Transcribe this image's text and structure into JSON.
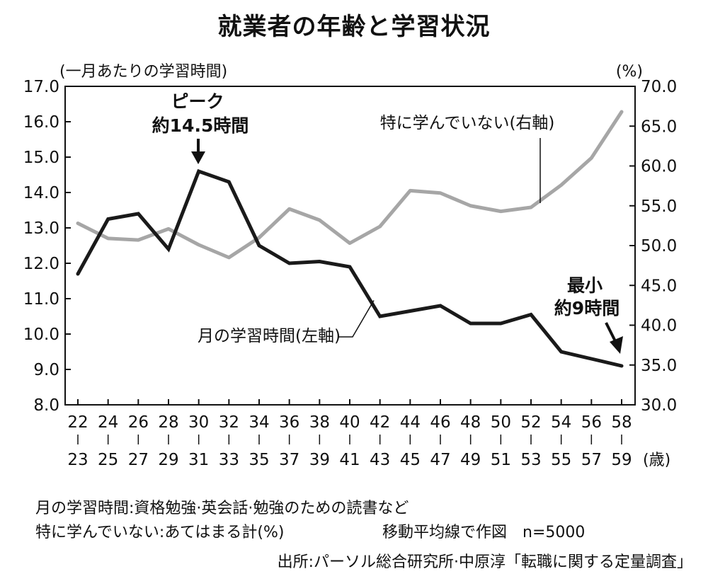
{
  "title": "就業者の年齢と学習状況",
  "chart_data": {
    "type": "line",
    "categories": [
      [
        "22",
        "23"
      ],
      [
        "24",
        "25"
      ],
      [
        "26",
        "27"
      ],
      [
        "28",
        "29"
      ],
      [
        "30",
        "31"
      ],
      [
        "32",
        "33"
      ],
      [
        "34",
        "35"
      ],
      [
        "36",
        "37"
      ],
      [
        "38",
        "39"
      ],
      [
        "40",
        "41"
      ],
      [
        "42",
        "43"
      ],
      [
        "44",
        "45"
      ],
      [
        "46",
        "47"
      ],
      [
        "48",
        "49"
      ],
      [
        "50",
        "51"
      ],
      [
        "52",
        "53"
      ],
      [
        "54",
        "55"
      ],
      [
        "56",
        "57"
      ],
      [
        "58",
        "59"
      ]
    ],
    "x_unit": "(歳)",
    "left_axis": {
      "label": "(一月あたりの学習時間)",
      "ylim": [
        8.0,
        17.0
      ],
      "ticks": [
        "8.0",
        "9.0",
        "10.0",
        "11.0",
        "12.0",
        "13.0",
        "14.0",
        "15.0",
        "16.0",
        "17.0"
      ]
    },
    "right_axis": {
      "label": "(%)",
      "ylim": [
        30.0,
        70.0
      ],
      "ticks": [
        "30.0",
        "35.0",
        "40.0",
        "45.0",
        "50.0",
        "55.0",
        "60.0",
        "65.0",
        "70.0"
      ]
    },
    "series": [
      {
        "name": "月の学習時間(左軸)",
        "axis": "left",
        "color": "#1a1a1a",
        "values": [
          11.7,
          13.25,
          13.4,
          12.4,
          14.6,
          14.3,
          12.5,
          12.0,
          12.05,
          11.9,
          10.5,
          10.65,
          10.8,
          10.3,
          10.3,
          10.55,
          9.5,
          9.3,
          9.1
        ]
      },
      {
        "name": "特に学んでいない(右軸)",
        "axis": "right",
        "color": "#a6a6a6",
        "values": [
          52.8,
          50.9,
          50.7,
          52.1,
          50.1,
          48.5,
          51.0,
          54.6,
          53.2,
          50.3,
          52.4,
          56.9,
          56.6,
          55.0,
          54.3,
          54.8,
          57.6,
          61.0,
          66.8
        ]
      }
    ],
    "annotations": {
      "peak": [
        "ピーク",
        "約14.5時間"
      ],
      "min": [
        "最小",
        "約9時間"
      ]
    }
  },
  "notes": {
    "line1": "月の学習時間:資格勉強·英会話·勉強のための読書など",
    "line2": "特に学んでいない:あてはまる計(%)",
    "line3": "移動平均線で作図　n=5000",
    "source": "出所:パーソル総合研究所·中原淳「転職に関する定量調査」"
  }
}
